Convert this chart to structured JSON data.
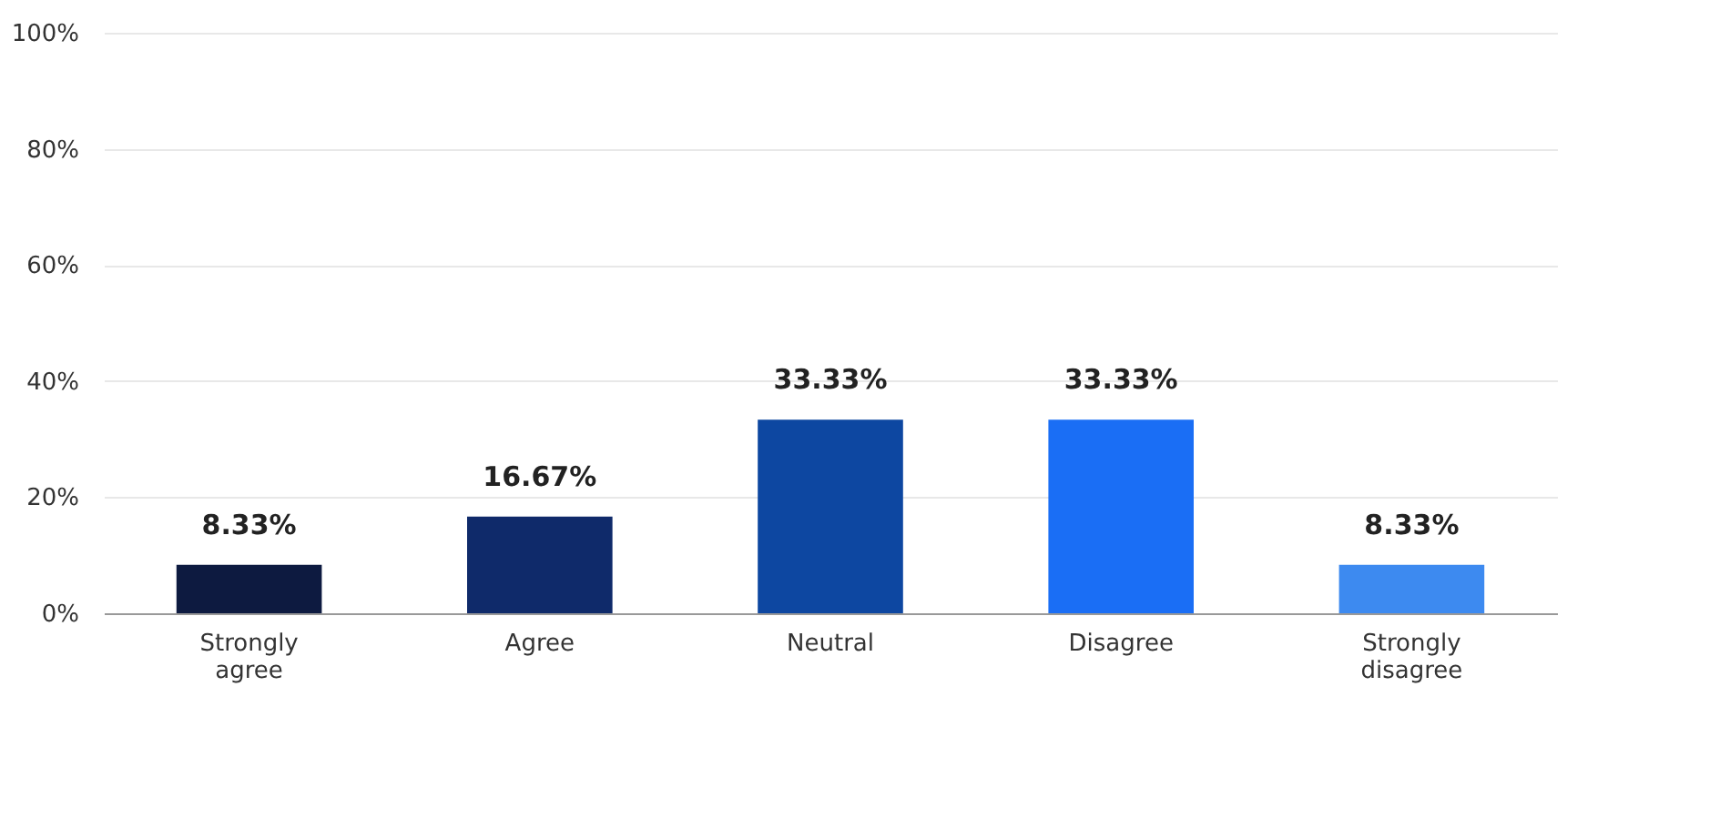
{
  "chart_data": {
    "type": "bar",
    "categories": [
      "Strongly agree",
      "Agree",
      "Neutral",
      "Disagree",
      "Strongly disagree"
    ],
    "values": [
      8.33,
      16.67,
      33.33,
      33.33,
      8.33
    ],
    "colors": [
      "#0d1a40",
      "#0f2a6a",
      "#0d47a1",
      "#1a6ef5",
      "#3d8af0"
    ],
    "value_labels": [
      "8.33%",
      "16.67%",
      "33.33%",
      "33.33%",
      "8.33%"
    ],
    "ylim": [
      0,
      100
    ],
    "yticks": [
      {
        "value": 0,
        "label": "0%"
      },
      {
        "value": 20,
        "label": "20%"
      },
      {
        "value": 40,
        "label": "40%"
      },
      {
        "value": 60,
        "label": "60%"
      },
      {
        "value": 80,
        "label": "80%"
      },
      {
        "value": 100,
        "label": "100%"
      }
    ],
    "grid": "y"
  }
}
